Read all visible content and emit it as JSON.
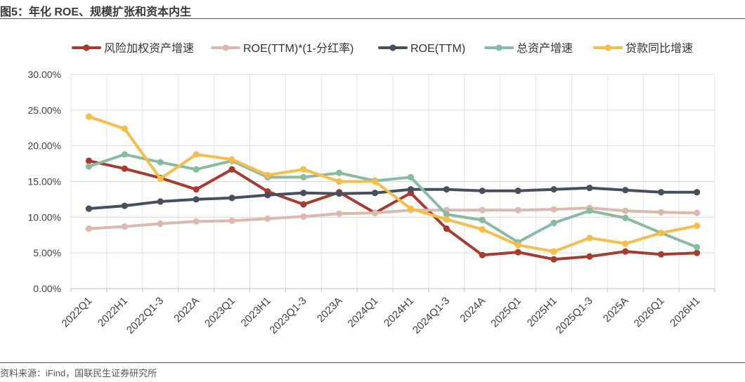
{
  "figure": {
    "title": "图5：年化 ROE、规模扩张和资本内生",
    "source": "资料来源：iFind，国联民生证券研究所"
  },
  "chart_data": {
    "type": "line",
    "title": "",
    "xlabel": "",
    "ylabel": "",
    "ylim": [
      0,
      0.3
    ],
    "y_ticks": [
      0,
      0.05,
      0.1,
      0.15,
      0.2,
      0.25,
      0.3
    ],
    "y_tick_labels": [
      "0.00%",
      "5.00%",
      "10.00%",
      "15.00%",
      "20.00%",
      "25.00%",
      "30.00%"
    ],
    "grid": "on (both axes)",
    "legend_position": "top",
    "categories": [
      "2022Q1",
      "2022H1",
      "2022Q1-3",
      "2022A",
      "2023Q1",
      "2023H1",
      "2023Q1-3",
      "2023A",
      "2024Q1",
      "2024H1",
      "2024Q1-3",
      "2024A",
      "2025Q1",
      "2025H1",
      "2025Q1-3",
      "2025A",
      "2026Q1",
      "2026H1"
    ],
    "series": [
      {
        "name": "风险加权资产增速",
        "color": "#a93a2e",
        "values": [
          0.179,
          0.168,
          0.155,
          0.139,
          0.167,
          0.136,
          0.118,
          0.135,
          0.106,
          0.134,
          0.084,
          0.047,
          0.051,
          0.041,
          0.045,
          0.052,
          0.048,
          0.05
        ]
      },
      {
        "name": "ROE(TTM)*(1-分红率)",
        "color": "#dbb9ac",
        "values": [
          0.084,
          0.087,
          0.091,
          0.094,
          0.095,
          0.098,
          0.101,
          0.105,
          0.106,
          0.11,
          0.11,
          0.11,
          0.11,
          0.111,
          0.113,
          0.109,
          0.107,
          0.106
        ]
      },
      {
        "name": "ROE(TTM)",
        "color": "#474f5e",
        "values": [
          0.112,
          0.116,
          0.122,
          0.125,
          0.127,
          0.131,
          0.134,
          0.133,
          0.134,
          0.139,
          0.139,
          0.137,
          0.137,
          0.139,
          0.141,
          0.138,
          0.135,
          0.135
        ]
      },
      {
        "name": "总资产增速",
        "color": "#88bca0",
        "values": [
          0.171,
          0.188,
          0.177,
          0.167,
          0.179,
          0.156,
          0.156,
          0.162,
          0.151,
          0.156,
          0.104,
          0.096,
          0.065,
          0.092,
          0.109,
          0.099,
          0.078,
          0.058
        ]
      },
      {
        "name": "贷款同比增速",
        "color": "#f6bd48",
        "values": [
          0.241,
          0.224,
          0.154,
          0.188,
          0.181,
          0.159,
          0.167,
          0.15,
          0.15,
          0.112,
          0.097,
          0.083,
          0.061,
          0.052,
          0.071,
          0.063,
          0.078,
          0.088
        ]
      }
    ]
  }
}
